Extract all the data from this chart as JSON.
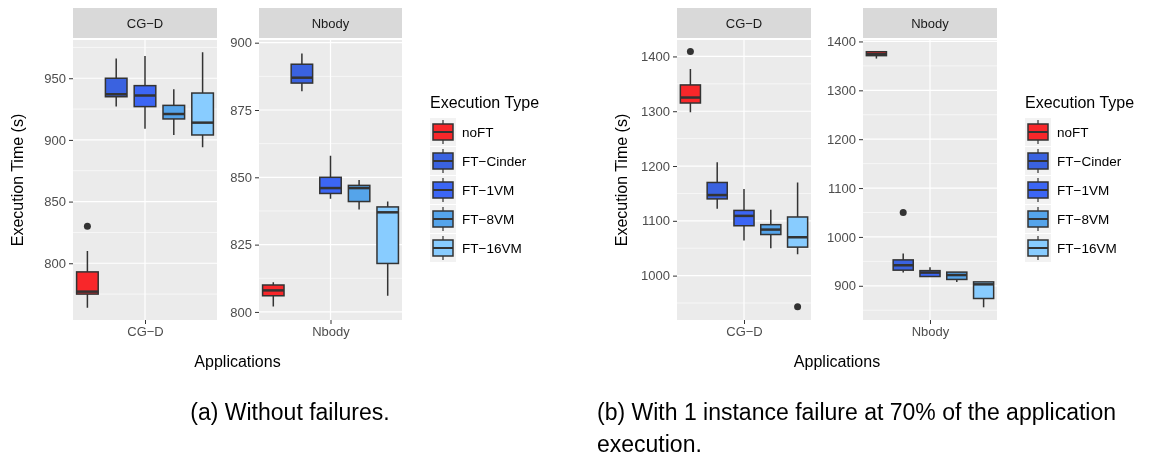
{
  "chart_data": [
    {
      "type": "box",
      "title": "CG−D",
      "categories": [
        null,
        null,
        "CG−D",
        null,
        null
      ],
      "ylabel": "Execution Time (s)",
      "xlabel": "Applications",
      "ylim": [
        754,
        981
      ],
      "yticks": [
        800,
        850,
        900,
        950
      ],
      "grid": true,
      "annotations": [
        "(a) Without failures."
      ],
      "series": [
        {
          "color": "#f8272a",
          "boxes": [
            {
              "low": 764,
              "q1": 775,
              "median": 777,
              "q3": 793,
              "high": 810,
              "outliers": [
                830
              ]
            },
            null,
            null,
            null,
            null
          ]
        },
        {
          "color": "#3a62e0",
          "boxes": [
            null,
            {
              "low": 927,
              "q1": 935,
              "median": 937,
              "q3": 950,
              "high": 966
            },
            null,
            null,
            null
          ]
        },
        {
          "color": "#3c66f5",
          "boxes": [
            null,
            null,
            {
              "low": 909,
              "q1": 927,
              "median": 936,
              "q3": 944,
              "high": 968
            },
            null,
            null
          ]
        },
        {
          "color": "#55a4ea",
          "boxes": [
            null,
            null,
            null,
            {
              "low": 904,
              "q1": 917,
              "median": 921,
              "q3": 928,
              "high": 941
            },
            null
          ]
        },
        {
          "color": "#88ccff",
          "boxes": [
            null,
            null,
            null,
            null,
            {
              "low": 894,
              "q1": 904,
              "median": 914,
              "q3": 938,
              "high": 971
            }
          ]
        }
      ]
    },
    {
      "type": "box",
      "title": "Nbody",
      "categories": [
        null,
        null,
        "Nbody",
        null,
        null
      ],
      "ylim": [
        797,
        901
      ],
      "yticks": [
        800,
        825,
        850,
        875,
        900
      ],
      "grid": true,
      "legend": "right",
      "legend_title": "Execution Type",
      "series": [
        {
          "name": "noFT",
          "color": "#f8272a",
          "boxes": [
            {
              "low": 802,
              "q1": 806,
              "median": 808,
              "q3": 810,
              "high": 811
            },
            null,
            null,
            null,
            null
          ]
        },
        {
          "name": "FT−Cinder",
          "color": "#3a62e0",
          "boxes": [
            null,
            {
              "low": 882,
              "q1": 885,
              "median": 887,
              "q3": 892,
              "high": 896
            },
            null,
            null,
            null
          ]
        },
        {
          "name": "FT−1VM",
          "color": "#3c66f5",
          "boxes": [
            null,
            null,
            {
              "low": 842,
              "q1": 844,
              "median": 846,
              "q3": 850,
              "high": 858
            },
            null,
            null
          ]
        },
        {
          "name": "FT−8VM",
          "color": "#55a4ea",
          "boxes": [
            null,
            null,
            null,
            {
              "low": 838,
              "q1": 841,
              "median": 846,
              "q3": 847,
              "high": 849
            },
            null
          ]
        },
        {
          "name": "FT−16VM",
          "color": "#88ccff",
          "boxes": [
            null,
            null,
            null,
            null,
            {
              "low": 806,
              "q1": 818,
              "median": 837,
              "q3": 839,
              "high": 841
            }
          ]
        }
      ]
    },
    {
      "type": "box",
      "title": "CG−D",
      "categories": [
        null,
        null,
        "CG−D",
        null,
        null
      ],
      "ylabel": "Execution Time (s)",
      "xlabel": "Applications",
      "ylim": [
        919,
        1430
      ],
      "yticks": [
        1000,
        1100,
        1200,
        1300,
        1400
      ],
      "grid": true,
      "annotations": [
        "(b) With 1 instance failure at 70% of the application execution."
      ],
      "series": [
        {
          "color": "#f8272a",
          "boxes": [
            {
              "low": 1298,
              "q1": 1315,
              "median": 1325,
              "q3": 1348,
              "high": 1377,
              "outliers": [
                1409
              ]
            },
            null,
            null,
            null,
            null
          ]
        },
        {
          "color": "#3a62e0",
          "boxes": [
            null,
            {
              "low": 1122,
              "q1": 1140,
              "median": 1147,
              "q3": 1170,
              "high": 1207
            },
            null,
            null,
            null
          ]
        },
        {
          "color": "#3c66f5",
          "boxes": [
            null,
            null,
            {
              "low": 1064,
              "q1": 1091,
              "median": 1109,
              "q3": 1119,
              "high": 1158
            },
            null,
            null
          ]
        },
        {
          "color": "#55a4ea",
          "boxes": [
            null,
            null,
            null,
            {
              "low": 1050,
              "q1": 1075,
              "median": 1084,
              "q3": 1093,
              "high": 1120
            },
            null
          ]
        },
        {
          "color": "#88ccff",
          "boxes": [
            null,
            null,
            null,
            null,
            {
              "low": 1039,
              "q1": 1052,
              "median": 1070,
              "q3": 1107,
              "high": 1170,
              "outliers": [
                943
              ]
            }
          ]
        }
      ]
    },
    {
      "type": "box",
      "title": "Nbody",
      "categories": [
        null,
        null,
        "Nbody",
        null,
        null
      ],
      "ylim": [
        830,
        1403
      ],
      "yticks": [
        900,
        1000,
        1100,
        1200,
        1300,
        1400
      ],
      "grid": true,
      "legend": "right",
      "legend_title": "Execution Type",
      "series": [
        {
          "name": "noFT",
          "color": "#f8272a",
          "boxes": [
            {
              "low": 1365,
              "q1": 1371,
              "median": 1374,
              "q3": 1379,
              "high": 1379
            },
            null,
            null,
            null,
            null
          ]
        },
        {
          "name": "FT−Cinder",
          "color": "#3a62e0",
          "boxes": [
            null,
            {
              "low": 927,
              "q1": 932,
              "median": 942,
              "q3": 953,
              "high": 966,
              "outliers": [
                1050
              ]
            },
            null,
            null,
            null
          ]
        },
        {
          "name": "FT−1VM",
          "color": "#3c66f5",
          "boxes": [
            null,
            null,
            {
              "low": 918,
              "q1": 919,
              "median": 927,
              "q3": 931,
              "high": 938
            },
            null,
            null
          ]
        },
        {
          "name": "FT−8VM",
          "color": "#55a4ea",
          "boxes": [
            null,
            null,
            null,
            {
              "low": 908,
              "q1": 913,
              "median": 922,
              "q3": 928,
              "high": 928
            },
            null
          ]
        },
        {
          "name": "FT−16VM",
          "color": "#88ccff",
          "boxes": [
            null,
            null,
            null,
            null,
            {
              "low": 856,
              "q1": 874,
              "median": 903,
              "q3": 908,
              "high": 908
            }
          ]
        }
      ]
    }
  ]
}
